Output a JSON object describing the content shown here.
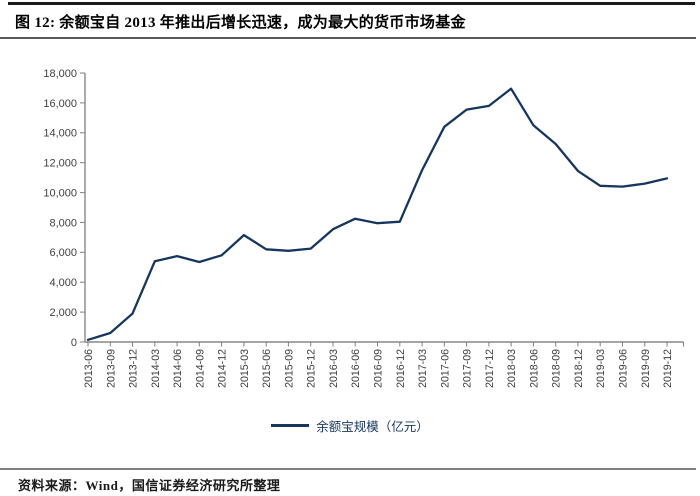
{
  "header": {
    "title": "图 12:  余额宝自 2013 年推出后增长迅速，成为最大的货币市场基金"
  },
  "footer": {
    "source": "资料来源：Wind，国信证券经济研究所整理"
  },
  "colors": {
    "line": "#17365d",
    "axis_gray": "#9a9a9a",
    "tick_gray": "#7f7f7f",
    "tick_text": "#404040"
  },
  "chart_data": {
    "type": "line",
    "title": "图 12: 余额宝自 2013 年推出后增长迅速，成为最大的货币市场基金",
    "xlabel": "",
    "ylabel": "",
    "grid": false,
    "legend_position": "bottom",
    "ylim": [
      0,
      18000
    ],
    "y_tick_step": 2000,
    "y_tick_labels": [
      "0",
      "2,000",
      "4,000",
      "6,000",
      "8,000",
      "10,000",
      "12,000",
      "14,000",
      "16,000",
      "18,000"
    ],
    "categories": [
      "2013-06",
      "2013-09",
      "2013-12",
      "2014-03",
      "2014-06",
      "2014-09",
      "2014-12",
      "2015-03",
      "2015-06",
      "2015-09",
      "2015-12",
      "2016-03",
      "2016-06",
      "2016-09",
      "2016-12",
      "2017-03",
      "2017-06",
      "2017-09",
      "2017-12",
      "2018-03",
      "2018-06",
      "2018-09",
      "2018-12",
      "2019-03",
      "2019-06",
      "2019-09",
      "2019-12"
    ],
    "series": [
      {
        "name": "余额宝规模（亿元）",
        "color": "#17365d",
        "values": [
          150,
          600,
          1900,
          5400,
          5750,
          5350,
          5800,
          7150,
          6200,
          6100,
          6250,
          7550,
          8250,
          7950,
          8050,
          11500,
          14400,
          15550,
          15800,
          16950,
          14500,
          13250,
          11450,
          10450,
          10400,
          10600,
          10950
        ]
      }
    ]
  }
}
